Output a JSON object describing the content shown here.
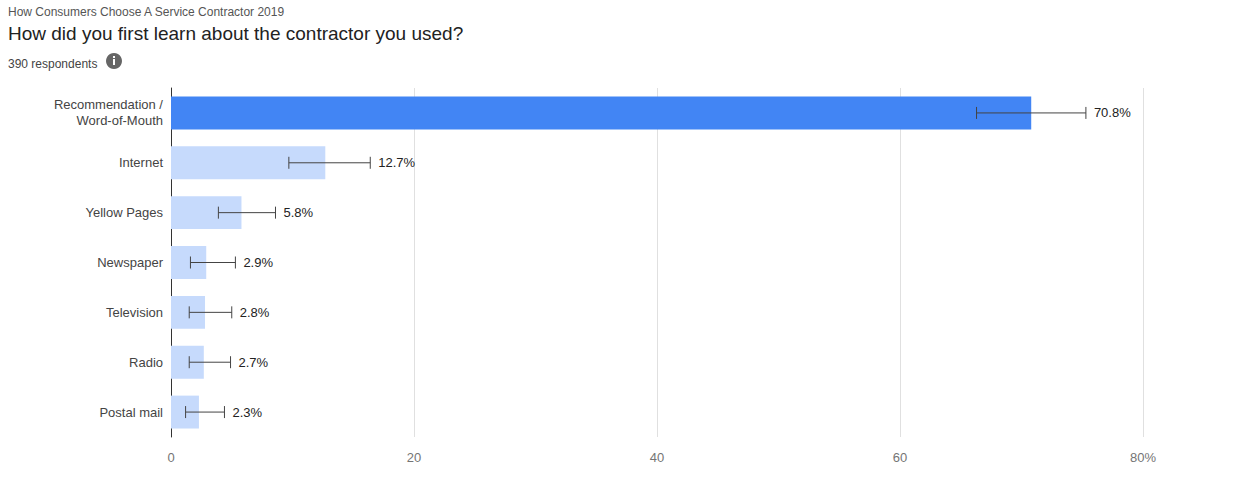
{
  "chart_data": {
    "type": "bar",
    "orientation": "horizontal",
    "supertitle": "How Consumers Choose A Service Contractor 2019",
    "title": "How did you first learn about the contractor you used?",
    "subtitle": "390 respondents",
    "categories": [
      "Recommendation /\nWord-of-Mouth",
      "Internet",
      "Yellow Pages",
      "Newspaper",
      "Television",
      "Radio",
      "Postal mail"
    ],
    "values": [
      70.8,
      12.7,
      5.8,
      2.9,
      2.8,
      2.7,
      2.3
    ],
    "value_labels": [
      "70.8%",
      "12.7%",
      "5.8%",
      "2.9%",
      "2.8%",
      "2.7%",
      "2.3%"
    ],
    "error_bars": [
      [
        66.3,
        75.3
      ],
      [
        9.7,
        16.4
      ],
      [
        3.9,
        8.6
      ],
      [
        1.6,
        5.3
      ],
      [
        1.5,
        5.0
      ],
      [
        1.5,
        4.9
      ],
      [
        1.2,
        4.4
      ]
    ],
    "colors": [
      "#4285f4",
      "#c6dafc",
      "#c6dafc",
      "#c6dafc",
      "#c6dafc",
      "#c6dafc",
      "#c6dafc"
    ],
    "xlim": [
      0,
      80
    ],
    "xticks": [
      0,
      20,
      40,
      60,
      {
        "value": 80,
        "label": "80%"
      }
    ],
    "grid": true,
    "data_labels": true
  }
}
